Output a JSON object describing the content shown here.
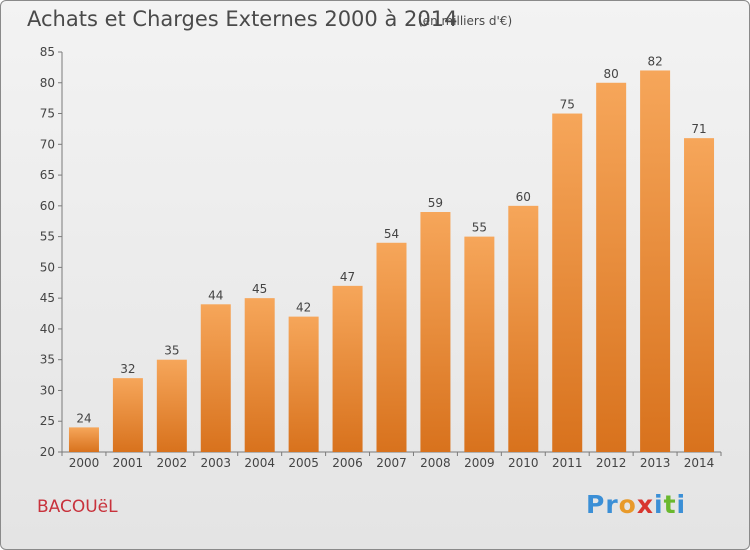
{
  "header": {
    "title": "Achats et Charges Externes 2000 à 2014",
    "unit": "(en milliers d'€)"
  },
  "footer": {
    "place": "BACOUëL",
    "logo_letters": [
      "P",
      "r",
      "o",
      "x",
      "i",
      "t",
      "i"
    ],
    "logo_colors": [
      "#3b8fd6",
      "#3b8fd6",
      "#e89a2a",
      "#d8362f",
      "#3b8fd6",
      "#6ab82e",
      "#3b8fd6"
    ]
  },
  "colors": {
    "bar_light": "#f6a65a",
    "bar_dark": "#d8721d",
    "place_text": "#c8323c"
  },
  "chart_data": {
    "type": "bar",
    "title": "Achats et Charges Externes 2000 à 2014",
    "categories": [
      "2000",
      "2001",
      "2002",
      "2003",
      "2004",
      "2005",
      "2006",
      "2007",
      "2008",
      "2009",
      "2010",
      "2011",
      "2012",
      "2013",
      "2014"
    ],
    "values": [
      24,
      32,
      35,
      44,
      45,
      42,
      47,
      54,
      59,
      55,
      60,
      75,
      80,
      82,
      71
    ],
    "ylim": [
      20,
      85
    ],
    "yticks": [
      20,
      25,
      30,
      35,
      40,
      45,
      50,
      55,
      60,
      65,
      70,
      75,
      80,
      85
    ],
    "grid": false,
    "legend": "none",
    "xlabel": "",
    "ylabel": ""
  }
}
